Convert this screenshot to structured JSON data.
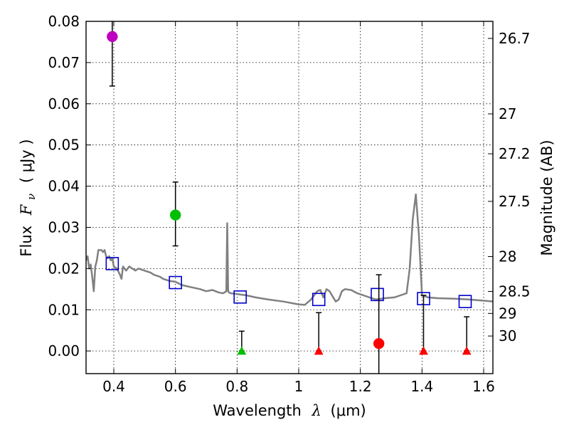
{
  "chart_data": {
    "type": "scatter",
    "xlabel_prefix": "Wavelength",
    "xlabel_symbol": "λ",
    "xlabel_units": "(μm)",
    "ylabel_prefix": "Flux",
    "ylabel_symbol": "F",
    "ylabel_subscript": "ν",
    "ylabel_units": "( μJy )",
    "y2label": "Magnitude (AB)",
    "xlim": [
      0.31,
      1.63
    ],
    "ylim": [
      -0.0055,
      0.08
    ],
    "x_ticks": [
      0.4,
      0.6,
      0.8,
      1.0,
      1.2,
      1.4,
      1.6
    ],
    "x_tick_labels": [
      "0.4",
      "0.6",
      "0.8",
      "1",
      "1.2",
      "1.4",
      "1.6"
    ],
    "y_ticks": [
      0.0,
      0.01,
      0.02,
      0.03,
      0.04,
      0.05,
      0.06,
      0.07,
      0.08
    ],
    "y_tick_labels": [
      "0.00",
      "0.01",
      "0.02",
      "0.03",
      "0.04",
      "0.05",
      "0.06",
      "0.07",
      "0.08"
    ],
    "mag_ticks": [
      26.7,
      27,
      27.2,
      27.5,
      28,
      28.5,
      29,
      30
    ],
    "mag_tick_labels": [
      "26.7",
      "27",
      "27.2",
      "27.5",
      "28",
      "28.5",
      "29",
      "30"
    ],
    "grid": true,
    "colors": {
      "sed": "#808080",
      "model": "#0000cc",
      "violet": "#bf00bf",
      "green": "#00bf00",
      "red": "#ff0000",
      "errorbar": "#000000"
    },
    "series": [
      {
        "name": "SED template",
        "kind": "line",
        "x": [
          0.31,
          0.315,
          0.32,
          0.325,
          0.33,
          0.335,
          0.34,
          0.345,
          0.35,
          0.36,
          0.365,
          0.37,
          0.375,
          0.38,
          0.385,
          0.39,
          0.395,
          0.4,
          0.41,
          0.42,
          0.425,
          0.43,
          0.44,
          0.45,
          0.46,
          0.47,
          0.48,
          0.5,
          0.52,
          0.53,
          0.55,
          0.56,
          0.58,
          0.6,
          0.62,
          0.65,
          0.68,
          0.7,
          0.72,
          0.74,
          0.755,
          0.765,
          0.768,
          0.771,
          0.774,
          0.78,
          0.8,
          0.83,
          0.86,
          0.9,
          0.95,
          1.0,
          1.02,
          1.04,
          1.06,
          1.07,
          1.08,
          1.09,
          1.1,
          1.12,
          1.13,
          1.14,
          1.15,
          1.17,
          1.19,
          1.21,
          1.23,
          1.25,
          1.28,
          1.31,
          1.33,
          1.35,
          1.36,
          1.37,
          1.38,
          1.39,
          1.4,
          1.42,
          1.45,
          1.5,
          1.55,
          1.6,
          1.63
        ],
        "y": [
          0.022,
          0.023,
          0.02,
          0.021,
          0.018,
          0.0145,
          0.0205,
          0.022,
          0.0245,
          0.0245,
          0.024,
          0.0245,
          0.023,
          0.0225,
          0.023,
          0.022,
          0.0225,
          0.0205,
          0.02,
          0.0185,
          0.0175,
          0.0205,
          0.0195,
          0.0205,
          0.02,
          0.0195,
          0.02,
          0.0195,
          0.019,
          0.0185,
          0.018,
          0.0175,
          0.017,
          0.0168,
          0.016,
          0.0155,
          0.015,
          0.0145,
          0.0148,
          0.0142,
          0.014,
          0.0145,
          0.031,
          0.0145,
          0.0142,
          0.014,
          0.0138,
          0.0135,
          0.013,
          0.0125,
          0.012,
          0.0113,
          0.0112,
          0.0125,
          0.0145,
          0.0148,
          0.013,
          0.015,
          0.0145,
          0.012,
          0.0125,
          0.0145,
          0.015,
          0.0148,
          0.014,
          0.0135,
          0.013,
          0.0125,
          0.0128,
          0.013,
          0.0135,
          0.014,
          0.02,
          0.032,
          0.038,
          0.028,
          0.0135,
          0.013,
          0.0128,
          0.0127,
          0.0125,
          0.0122,
          0.012
        ]
      },
      {
        "name": "Model fluxes",
        "kind": "open-square",
        "x": [
          0.395,
          0.6,
          0.81,
          1.065,
          1.255,
          1.405,
          1.54
        ],
        "y": [
          0.0212,
          0.0166,
          0.0131,
          0.0125,
          0.0137,
          0.0127,
          0.012
        ]
      },
      {
        "name": "Detection (violet)",
        "kind": "circle",
        "color": "violet",
        "x": [
          0.395
        ],
        "y": [
          0.0763
        ],
        "yerr_low": [
          0.0643
        ],
        "yerr_high": [
          0.0805
        ]
      },
      {
        "name": "Detection (green)",
        "kind": "circle",
        "color": "green",
        "x": [
          0.6
        ],
        "y": [
          0.033
        ],
        "yerr_low": [
          0.0255
        ],
        "yerr_high": [
          0.041
        ]
      },
      {
        "name": "Detection (red)",
        "kind": "circle",
        "color": "red",
        "x": [
          1.26
        ],
        "y": [
          0.0018
        ],
        "yerr_low": [
          -0.0055
        ],
        "yerr_high": [
          0.0185
        ]
      },
      {
        "name": "Upper limit (green)",
        "kind": "triangle",
        "color": "green",
        "x": [
          0.815
        ],
        "y": [
          0.0
        ],
        "yerr_low": [
          0.0
        ],
        "yerr_high": [
          0.0048
        ]
      },
      {
        "name": "Upper limits (red)",
        "kind": "triangle",
        "color": "red",
        "x": [
          1.065,
          1.405,
          1.545
        ],
        "y": [
          0.0,
          0.0,
          0.0
        ],
        "yerr_low": [
          0.0,
          0.0,
          0.0
        ],
        "yerr_high": [
          0.0093,
          0.0135,
          0.0083
        ]
      }
    ]
  }
}
